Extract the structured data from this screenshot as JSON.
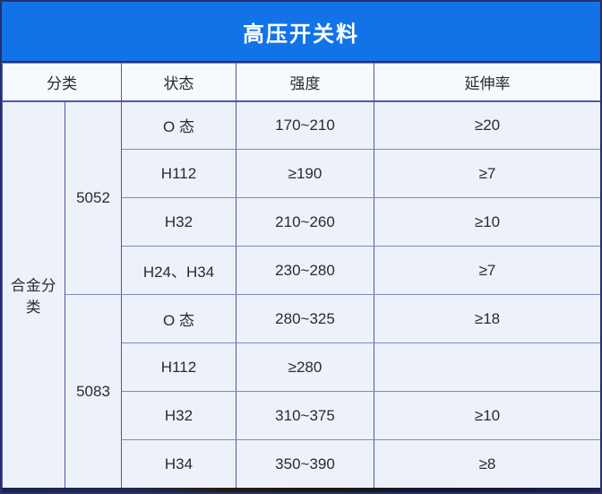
{
  "title": "高压开关料",
  "table": {
    "headers": {
      "category": "分类",
      "state": "状态",
      "strength": "强度",
      "elongation": "延伸率"
    },
    "category_label": "合金分类",
    "groups": [
      {
        "alloy": "5052",
        "rows": [
          {
            "state": "O 态",
            "strength": "170~210",
            "elongation": "≥20"
          },
          {
            "state": "H112",
            "strength": "≥190",
            "elongation": "≥7"
          },
          {
            "state": "H32",
            "strength": "210~260",
            "elongation": "≥10"
          },
          {
            "state": "H24、H34",
            "strength": "230~280",
            "elongation": "≥7"
          }
        ]
      },
      {
        "alloy": "5083",
        "rows": [
          {
            "state": "O 态",
            "strength": "280~325",
            "elongation": "≥18"
          },
          {
            "state": "H112",
            "strength": "≥280",
            "elongation": ""
          },
          {
            "state": "H32",
            "strength": "310~375",
            "elongation": "≥10"
          },
          {
            "state": "H34",
            "strength": "350~390",
            "elongation": "≥8"
          }
        ]
      }
    ]
  },
  "colors": {
    "title_bg": "#1273e8",
    "title_text": "#ffffff",
    "header_bg": "#f6f9fd",
    "cell_bg": "#edf1f9",
    "grid_line": "#5058a8",
    "grid_h_line": "#7f88c6",
    "outer_border": "#26306f",
    "text": "#2a2a32"
  }
}
